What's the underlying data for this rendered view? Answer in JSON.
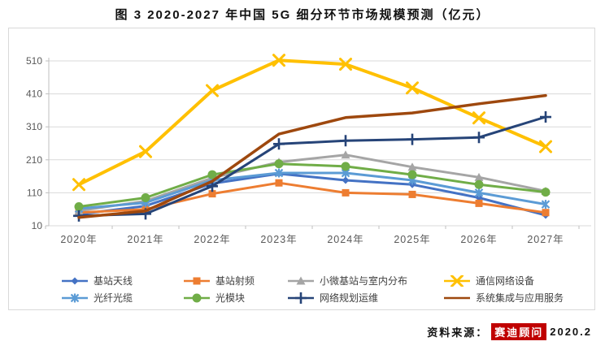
{
  "title": "图 3 2020-2027 年中国 5G 细分环节市场规模预测（亿元）",
  "source": {
    "label": "资料来源：",
    "brand": "赛迪顾问",
    "date": "2020.2",
    "brand_bg": "#c00000"
  },
  "colors": {
    "gridline": "#d9d9d9",
    "axis": "#bfbfbf",
    "tick_label": "#595959"
  },
  "chart_data": {
    "type": "line",
    "title": "图 3 2020-2027 年中国 5G 细分环节市场规模预测（亿元）",
    "xlabel": "",
    "ylabel": "亿元",
    "ylim": [
      10,
      510
    ],
    "yticks": [
      10,
      110,
      210,
      310,
      410,
      510
    ],
    "grid": true,
    "legend_position": "bottom",
    "categories": [
      "2020年",
      "2021年",
      "2022年",
      "2023年",
      "2024年",
      "2025年",
      "2026年",
      "2027年"
    ],
    "series": [
      {
        "name": "基站天线",
        "color": "#4472c4",
        "marker": "diamond",
        "line_width": 3,
        "values": [
          45,
          70,
          138,
          168,
          148,
          135,
          95,
          42
        ]
      },
      {
        "name": "基站射频",
        "color": "#ed7d31",
        "marker": "square",
        "line_width": 3,
        "values": [
          50,
          60,
          107,
          140,
          110,
          105,
          78,
          50
        ]
      },
      {
        "name": "小微基站与室内分布",
        "color": "#a5a5a5",
        "marker": "triangle",
        "line_width": 3,
        "values": [
          55,
          85,
          155,
          203,
          225,
          188,
          157,
          115
        ]
      },
      {
        "name": "通信网络设备",
        "color": "#ffc000",
        "marker": "x",
        "line_width": 4,
        "values": [
          135,
          235,
          420,
          512,
          500,
          428,
          337,
          250
        ]
      },
      {
        "name": "光纤光缆",
        "color": "#5b9bd5",
        "marker": "star",
        "line_width": 3,
        "values": [
          62,
          80,
          148,
          170,
          170,
          148,
          110,
          75
        ]
      },
      {
        "name": "光模块",
        "color": "#70ad47",
        "marker": "circle",
        "line_width": 3,
        "values": [
          68,
          95,
          165,
          198,
          190,
          165,
          135,
          112
        ]
      },
      {
        "name": "网络规划运维",
        "color": "#264478",
        "marker": "plus",
        "line_width": 3,
        "values": [
          40,
          46,
          130,
          258,
          268,
          272,
          278,
          340
        ]
      },
      {
        "name": "系统集成与应用服务",
        "color": "#9e480e",
        "marker": "none",
        "line_width": 3.5,
        "values": [
          35,
          55,
          145,
          288,
          338,
          352,
          380,
          405
        ]
      }
    ]
  }
}
